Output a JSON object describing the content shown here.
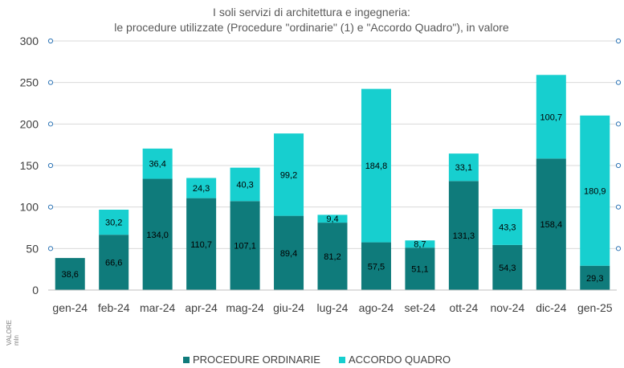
{
  "chart_data": {
    "type": "bar",
    "stacked": true,
    "title_lines": [
      "I soli servizi di architettura e ingegneria:",
      "le procedure utilizzate (Procedure \"ordinarie\" (1) e \"Accordo Quadro\"), in valore"
    ],
    "categories": [
      "gen-24",
      "feb-24",
      "mar-24",
      "apr-24",
      "mag-24",
      "giu-24",
      "lug-24",
      "ago-24",
      "set-24",
      "ott-24",
      "nov-24",
      "dic-24",
      "gen-25"
    ],
    "series": [
      {
        "name": "PROCEDURE ORDINARIE",
        "color": "#0f7b7b",
        "values": [
          38.6,
          66.6,
          134.0,
          110.7,
          107.1,
          89.4,
          81.2,
          57.5,
          51.1,
          131.3,
          54.3,
          158.4,
          29.3
        ],
        "labels": [
          "38,6",
          "66,6",
          "134,0",
          "110,7",
          "107,1",
          "89,4",
          "81,2",
          "57,5",
          "51,1",
          "131,3",
          "54,3",
          "158,4",
          "29,3"
        ]
      },
      {
        "name": "ACCORDO QUADRO",
        "color": "#17cfcf",
        "values": [
          null,
          30.2,
          36.4,
          24.3,
          40.3,
          99.2,
          9.4,
          184.8,
          8.7,
          33.1,
          43.3,
          100.7,
          180.9
        ],
        "labels": [
          "",
          "30,2",
          "36,4",
          "24,3",
          "40,3",
          "99,2",
          "9,4",
          "184,8",
          "8,7",
          "33,1",
          "43,3",
          "100,7",
          "180,9"
        ]
      }
    ],
    "y_ticks": [
      "0",
      "50",
      "100",
      "150",
      "200",
      "250",
      "300"
    ],
    "ylim": [
      0,
      300
    ],
    "ylabel_lines": [
      "VALORE",
      "mln"
    ],
    "gridlines": true,
    "legend_position": "bottom",
    "secondary_axis_marker_color": "#2e75b6"
  }
}
